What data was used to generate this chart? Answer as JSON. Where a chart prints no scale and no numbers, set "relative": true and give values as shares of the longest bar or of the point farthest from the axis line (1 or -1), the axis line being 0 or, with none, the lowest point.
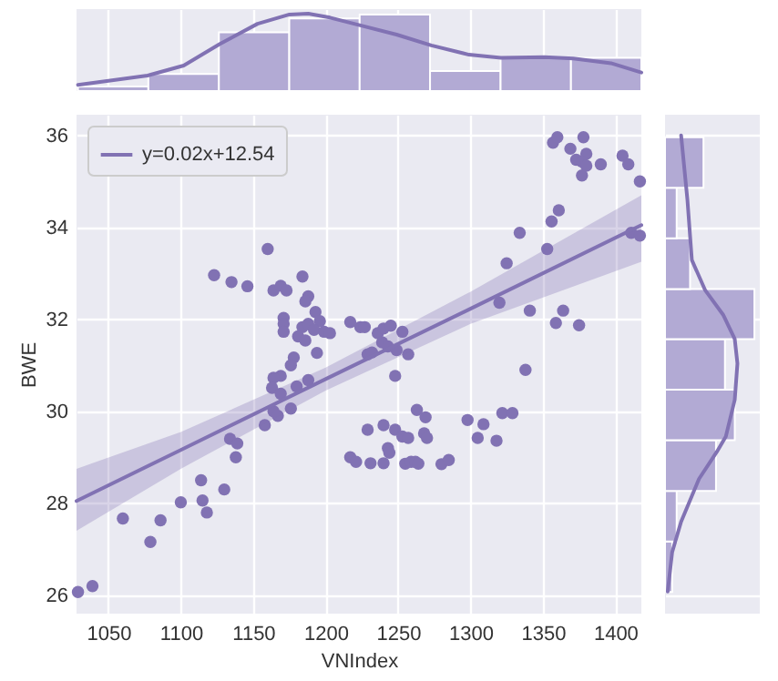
{
  "chart_data": [
    {
      "type": "histogram",
      "relative": true,
      "xlim": [
        1028,
        1418
      ],
      "xticks": [
        1050,
        1100,
        1150,
        1200,
        1250,
        1300,
        1350,
        1400
      ],
      "tick_labels": false,
      "grid": "x",
      "bins": [
        1029,
        1077.6,
        1126.3,
        1174.9,
        1223.5,
        1272.1,
        1320.8,
        1369.4,
        1418
      ],
      "series": [
        {
          "color": "#b2aad4",
          "values": [
            0.06,
            0.22,
            0.76,
            0.94,
            0.99,
            0.26,
            0.43,
            0.43
          ]
        },
        {
          "type": "line",
          "color": "#8172b3",
          "x": [
            1029,
            1077,
            1102,
            1127,
            1153,
            1175,
            1188,
            1203,
            1224,
            1249,
            1273,
            1299,
            1321,
            1351,
            1371,
            1397,
            1418
          ],
          "values": [
            0.08,
            0.2,
            0.33,
            0.61,
            0.87,
            0.99,
            1,
            0.95,
            0.85,
            0.73,
            0.59,
            0.47,
            0.43,
            0.44,
            0.42,
            0.36,
            0.24
          ]
        }
      ]
    },
    {
      "type": "scatter",
      "xlabel": "VNIndex",
      "ylabel": "BWE",
      "xlim": [
        1028,
        1418
      ],
      "ylim": [
        25.6,
        36.45
      ],
      "xticks": [
        1050,
        1100,
        1150,
        1200,
        1250,
        1300,
        1350,
        1400
      ],
      "yticks": [
        26,
        28,
        30,
        32,
        34,
        36
      ],
      "grid": true,
      "legend": "top left",
      "series": [
        {
          "marker": "circle",
          "color": "#8172b3",
          "x": [
            1029,
            1039,
            1060,
            1079,
            1086,
            1100,
            1114,
            1115,
            1118,
            1130,
            1134,
            1139,
            1138,
            1158,
            1164,
            1167,
            1176,
            1217,
            1221,
            1229,
            1231,
            1240,
            1240,
            1243,
            1244,
            1248,
            1253,
            1257,
            1255,
            1259,
            1262,
            1264,
            1263,
            1269,
            1268,
            1270,
            1280,
            1285,
            1298,
            1309,
            1305,
            1318,
            1322,
            1329,
            1224,
            1229,
            1236,
            1240,
            1245,
            1253,
            1239,
            1243,
            1249,
            1257,
            1248,
            1320,
            1338,
            1341,
            1325,
            1334,
            1353,
            1356,
            1361,
            1359,
            1364,
            1375,
            1357,
            1360,
            1369,
            1378,
            1380,
            1373,
            1377,
            1380,
            1377,
            1390,
            1405,
            1409,
            1417,
            1411,
            1417,
            1160,
            1123,
            1135,
            1146,
            1164,
            1169,
            1173,
            1184,
            1188,
            1186,
            1171,
            1171,
            1171,
            1193,
            1196,
            1184,
            1188,
            1192,
            1199,
            1203,
            1181,
            1186,
            1194,
            1217,
            1227,
            1232,
            1178,
            1176,
            1169,
            1164,
            1163,
            1169,
            1180,
            1188
          ],
          "values": [
            26.07,
            26.2,
            27.67,
            27.16,
            27.63,
            28.02,
            28.5,
            28.06,
            27.8,
            28.3,
            29.4,
            29.3,
            29.0,
            29.7,
            30.0,
            29.9,
            30.06,
            29.0,
            28.9,
            29.6,
            28.87,
            29.7,
            28.87,
            29.2,
            29.1,
            29.6,
            29.45,
            29.42,
            28.86,
            28.9,
            28.9,
            28.86,
            30.03,
            29.87,
            29.52,
            29.42,
            28.85,
            28.94,
            29.81,
            29.72,
            29.42,
            29.36,
            29.96,
            29.96,
            31.83,
            31.24,
            31.7,
            31.8,
            31.86,
            31.73,
            31.5,
            31.41,
            31.33,
            31.24,
            30.77,
            32.36,
            30.9,
            32.19,
            33.22,
            33.88,
            33.53,
            34.13,
            34.37,
            31.92,
            32.19,
            31.87,
            35.84,
            35.96,
            35.71,
            35.96,
            35.6,
            35.47,
            35.43,
            35.34,
            35.13,
            35.37,
            35.56,
            35.37,
            35.0,
            33.88,
            33.82,
            33.53,
            32.96,
            32.81,
            32.72,
            32.63,
            32.73,
            32.63,
            32.93,
            32.5,
            32.39,
            32.03,
            31.9,
            31.73,
            32.16,
            31.96,
            31.83,
            31.9,
            31.77,
            31.73,
            31.7,
            31.63,
            31.54,
            31.27,
            31.94,
            31.83,
            31.28,
            31.17,
            31.0,
            30.77,
            30.73,
            30.51,
            30.38,
            30.54,
            30.68
          ]
        },
        {
          "type": "line",
          "name": "y=0.02x+12.54",
          "color": "#8172b3",
          "x": [
            1028,
            1100,
            1200,
            1300,
            1418
          ],
          "values": [
            28.05,
            29.16,
            30.7,
            32.23,
            34.05
          ],
          "lower": [
            27.4,
            28.75,
            30.45,
            31.9,
            33.25
          ],
          "upper": [
            28.75,
            29.55,
            30.95,
            32.6,
            34.7
          ]
        }
      ]
    },
    {
      "type": "histogram",
      "orientation": "horizontal",
      "relative": true,
      "ylim": [
        25.6,
        36.45
      ],
      "yticks": [
        26,
        28,
        30,
        32,
        34,
        36
      ],
      "tick_labels": false,
      "grid": "y",
      "bins": [
        26.07,
        27.17,
        28.27,
        29.37,
        30.47,
        31.57,
        32.66,
        33.76,
        34.86,
        35.96
      ],
      "series": [
        {
          "color": "#b2aad4",
          "values": [
            0.08,
            0.13,
            0.57,
            0.78,
            0.67,
            1,
            0.28,
            0.13,
            0.43
          ]
        },
        {
          "type": "line",
          "color": "#8172b3",
          "x": [
            26.08,
            26.94,
            27.6,
            28.53,
            29.12,
            29.45,
            30.25,
            31.04,
            31.57,
            32.1,
            32.63,
            33.29,
            34.61,
            36.0
          ],
          "values": [
            0.03,
            0.08,
            0.18,
            0.38,
            0.58,
            0.68,
            0.78,
            0.81,
            0.78,
            0.65,
            0.45,
            0.3,
            0.25,
            0.18
          ]
        }
      ]
    }
  ]
}
